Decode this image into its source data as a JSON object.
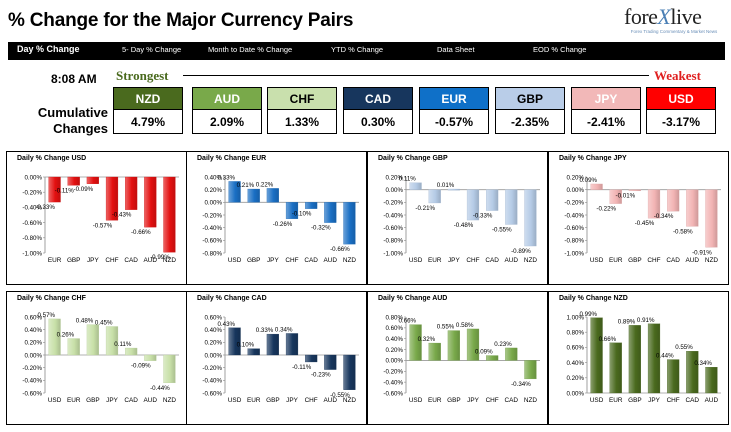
{
  "header": {
    "title": "% Change for the Major Currency Pairs",
    "logo": {
      "brand_left": "fore",
      "brand_x": "X",
      "brand_right": "live",
      "tagline": "Forex Trading Commentary & Market News"
    }
  },
  "nav": [
    {
      "label": "Day % Change",
      "active": true
    },
    {
      "label": "5- Day % Change",
      "active": false
    },
    {
      "label": "Month to Date % Change",
      "active": false
    },
    {
      "label": "YTD % Change",
      "active": false
    },
    {
      "label": "Data Sheet",
      "active": false
    },
    {
      "label": "EOD % Change",
      "active": false
    }
  ],
  "summary": {
    "time": "8:08 AM",
    "strongest_label": "Strongest",
    "weakest_label": "Weakest",
    "cumulative_label_1": "Cumulative",
    "cumulative_label_2": "Changes",
    "currencies": [
      {
        "code": "NZD",
        "value": "4.79%",
        "bg": "#4a6a1e",
        "fg": "#ffffff"
      },
      {
        "code": "AUD",
        "value": "2.09%",
        "bg": "#79a94a",
        "fg": "#ffffff"
      },
      {
        "code": "CHF",
        "value": "1.33%",
        "bg": "#c9e0ad",
        "fg": "#000000"
      },
      {
        "code": "CAD",
        "value": "0.30%",
        "bg": "#17365d",
        "fg": "#ffffff"
      },
      {
        "code": "EUR",
        "value": "-0.57%",
        "bg": "#0f70c8",
        "fg": "#ffffff"
      },
      {
        "code": "GBP",
        "value": "-2.35%",
        "bg": "#b9cde8",
        "fg": "#000000"
      },
      {
        "code": "JPY",
        "value": "-2.41%",
        "bg": "#f2b8b8",
        "fg": "#ffffff"
      },
      {
        "code": "USD",
        "value": "-3.17%",
        "bg": "#ff0000",
        "fg": "#ffffff"
      }
    ]
  },
  "chart_data": [
    {
      "type": "bar",
      "title": "Daily % Change USD",
      "categories": [
        "EUR",
        "GBP",
        "JPY",
        "CHF",
        "CAD",
        "AUD",
        "NZD"
      ],
      "values": [
        -0.33,
        -0.11,
        -0.09,
        -0.57,
        -0.43,
        -0.66,
        -0.99
      ],
      "value_labels": [
        "-0.33%",
        "-0.11%",
        "-0.09%",
        "-0.57%",
        "-0.43%",
        "-0.66%",
        "-0.99%"
      ],
      "ylim": [
        -1.0,
        0.0
      ],
      "yticks": [
        0.0,
        -0.2,
        -0.4,
        -0.6,
        -0.8,
        -1.0
      ],
      "ytick_labels": [
        "0.00%",
        "-0.20%",
        "-0.40%",
        "-0.60%",
        "-0.80%",
        "-1.00%"
      ],
      "bar_color": "#e31010",
      "grid": false
    },
    {
      "type": "bar",
      "title": "Daily % Change EUR",
      "categories": [
        "USD",
        "GBP",
        "JPY",
        "CHF",
        "CAD",
        "AUD",
        "NZD"
      ],
      "values": [
        0.33,
        0.21,
        0.22,
        -0.26,
        -0.1,
        -0.32,
        -0.66
      ],
      "value_labels": [
        "0.33%",
        "0.21%",
        "0.22%",
        "-0.26%",
        "-0.10%",
        "-0.32%",
        "-0.66%"
      ],
      "ylim": [
        -0.8,
        0.4
      ],
      "yticks": [
        0.4,
        0.2,
        0.0,
        -0.2,
        -0.4,
        -0.6,
        -0.8
      ],
      "ytick_labels": [
        "0.40%",
        "0.20%",
        "0.00%",
        "-0.20%",
        "-0.40%",
        "-0.60%",
        "-0.80%"
      ],
      "bar_color": "#1a6fc4",
      "grid": false
    },
    {
      "type": "bar",
      "title": "Daily % Change GBP",
      "categories": [
        "USD",
        "EUR",
        "JPY",
        "CHF",
        "CAD",
        "AUD",
        "NZD"
      ],
      "values": [
        0.11,
        -0.21,
        0.01,
        -0.48,
        -0.33,
        -0.55,
        -0.89
      ],
      "value_labels": [
        "0.11%",
        "-0.21%",
        "0.01%",
        "-0.48%",
        "-0.33%",
        "-0.55%",
        "-0.89%"
      ],
      "ylim": [
        -1.0,
        0.2
      ],
      "yticks": [
        0.2,
        0.0,
        -0.2,
        -0.4,
        -0.6,
        -0.8,
        -1.0
      ],
      "ytick_labels": [
        "0.20%",
        "0.00%",
        "-0.20%",
        "-0.40%",
        "-0.60%",
        "-0.80%",
        "-1.00%"
      ],
      "bar_color": "#b5cbe6",
      "grid": false
    },
    {
      "type": "bar",
      "title": "Daily % Change JPY",
      "categories": [
        "USD",
        "EUR",
        "GBP",
        "CHF",
        "CAD",
        "AUD",
        "NZD"
      ],
      "values": [
        0.09,
        -0.22,
        -0.01,
        -0.45,
        -0.34,
        -0.58,
        -0.91
      ],
      "value_labels": [
        "0.09%",
        "-0.22%",
        "-0.01%",
        "-0.45%",
        "-0.34%",
        "-0.58%",
        "-0.91%"
      ],
      "ylim": [
        -1.0,
        0.2
      ],
      "yticks": [
        0.2,
        0.0,
        -0.2,
        -0.4,
        -0.6,
        -0.8,
        -1.0
      ],
      "ytick_labels": [
        "0.20%",
        "0.00%",
        "-0.20%",
        "-0.40%",
        "-0.60%",
        "-0.80%",
        "-1.00%"
      ],
      "bar_color": "#f2b4b4",
      "grid": false
    },
    {
      "type": "bar",
      "title": "Daily % Change CHF",
      "categories": [
        "USD",
        "EUR",
        "GBP",
        "JPY",
        "CAD",
        "AUD",
        "NZD"
      ],
      "values": [
        0.57,
        0.26,
        0.48,
        0.45,
        0.11,
        -0.09,
        -0.44
      ],
      "value_labels": [
        "0.57%",
        "0.26%",
        "0.48%",
        "0.45%",
        "0.11%",
        "-0.09%",
        "-0.44%"
      ],
      "ylim": [
        -0.6,
        0.6
      ],
      "yticks": [
        0.6,
        0.4,
        0.2,
        0.0,
        -0.2,
        -0.4,
        -0.6
      ],
      "ytick_labels": [
        "0.60%",
        "0.40%",
        "0.20%",
        "0.00%",
        "-0.20%",
        "-0.40%",
        "-0.60%"
      ],
      "bar_color": "#c8e0a8",
      "grid": false
    },
    {
      "type": "bar",
      "title": "Daily % Change CAD",
      "categories": [
        "USD",
        "EUR",
        "GBP",
        "JPY",
        "CHF",
        "AUD",
        "NZD"
      ],
      "values": [
        0.43,
        0.1,
        0.33,
        0.34,
        -0.11,
        -0.23,
        -0.55
      ],
      "value_labels": [
        "0.43%",
        "0.10%",
        "0.33%",
        "0.34%",
        "-0.11%",
        "-0.23%",
        "-0.55%"
      ],
      "ylim": [
        -0.6,
        0.6
      ],
      "yticks": [
        0.6,
        0.4,
        0.2,
        0.0,
        -0.2,
        -0.4,
        -0.6
      ],
      "ytick_labels": [
        "0.60%",
        "0.40%",
        "0.20%",
        "0.00%",
        "-0.20%",
        "-0.40%",
        "-0.60%"
      ],
      "bar_color": "#17365d",
      "grid": false
    },
    {
      "type": "bar",
      "title": "Daily % Change AUD",
      "categories": [
        "USD",
        "EUR",
        "GBP",
        "JPY",
        "CHF",
        "CAD",
        "NZD"
      ],
      "values": [
        0.66,
        0.32,
        0.55,
        0.58,
        0.09,
        0.23,
        -0.34
      ],
      "value_labels": [
        "0.66%",
        "0.32%",
        "0.55%",
        "0.58%",
        "0.09%",
        "0.23%",
        "-0.34%"
      ],
      "ylim": [
        -0.6,
        0.8
      ],
      "yticks": [
        0.8,
        0.6,
        0.4,
        0.2,
        0.0,
        -0.2,
        -0.4,
        -0.6
      ],
      "ytick_labels": [
        "0.80%",
        "0.60%",
        "0.40%",
        "0.20%",
        "0.00%",
        "-0.20%",
        "-0.40%",
        "-0.60%"
      ],
      "bar_color": "#79a94a",
      "grid": false
    },
    {
      "type": "bar",
      "title": "Daily % Change NZD",
      "categories": [
        "USD",
        "EUR",
        "GBP",
        "JPY",
        "CHF",
        "CAD",
        "AUD"
      ],
      "values": [
        0.99,
        0.66,
        0.89,
        0.91,
        0.44,
        0.55,
        0.34
      ],
      "value_labels": [
        "0.99%",
        "0.66%",
        "0.89%",
        "0.91%",
        "0.44%",
        "0.55%",
        "0.34%"
      ],
      "ylim": [
        0.0,
        1.0
      ],
      "yticks": [
        1.0,
        0.8,
        0.6,
        0.4,
        0.2,
        0.0
      ],
      "ytick_labels": [
        "1.00%",
        "0.80%",
        "0.60%",
        "0.40%",
        "0.20%",
        "0.00%"
      ],
      "bar_color": "#4a6a1e",
      "grid": false
    }
  ]
}
